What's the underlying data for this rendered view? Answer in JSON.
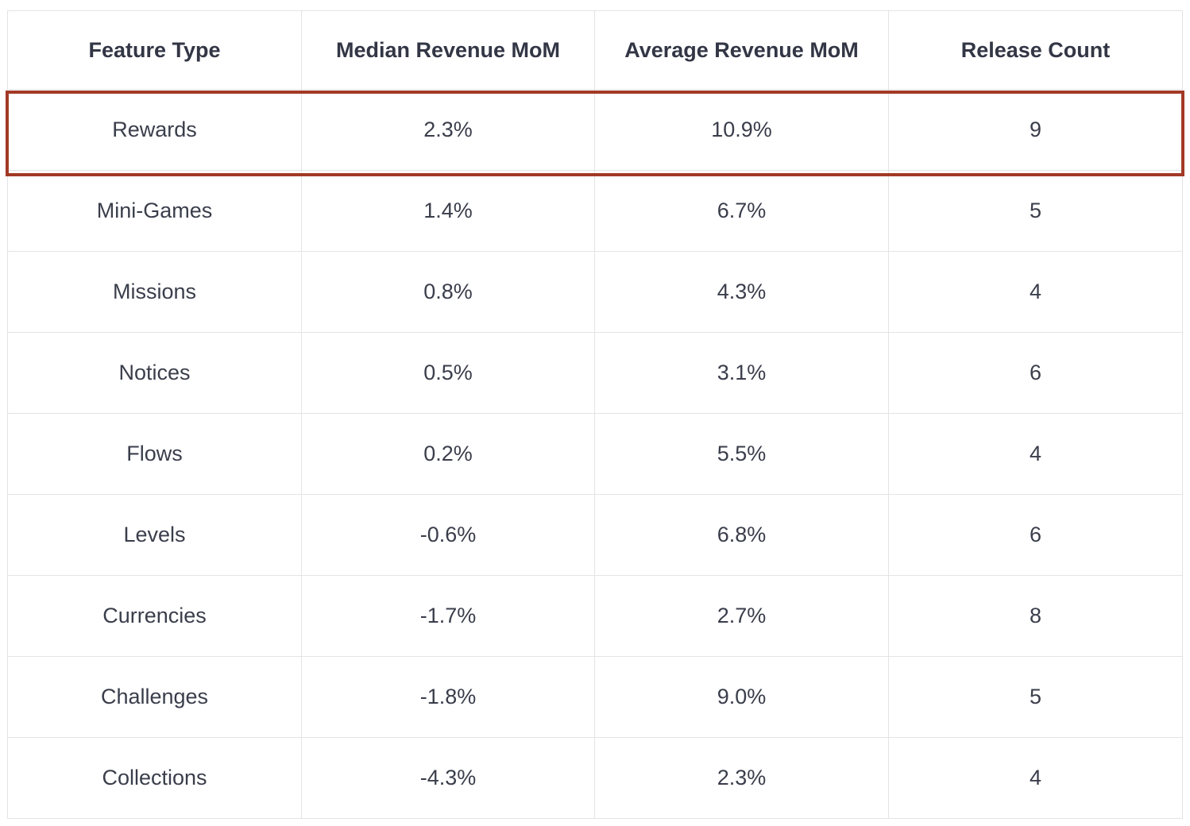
{
  "chart_data": {
    "type": "table",
    "columns": [
      "Feature Type",
      "Median Revenue MoM",
      "Average Revenue MoM",
      "Release Count"
    ],
    "rows": [
      [
        "Rewards",
        "2.3%",
        "10.9%",
        "9"
      ],
      [
        "Mini-Games",
        "1.4%",
        "6.7%",
        "5"
      ],
      [
        "Missions",
        "0.8%",
        "4.3%",
        "4"
      ],
      [
        "Notices",
        "0.5%",
        "3.1%",
        "6"
      ],
      [
        "Flows",
        "0.2%",
        "5.5%",
        "4"
      ],
      [
        "Levels",
        "-0.6%",
        "6.8%",
        "6"
      ],
      [
        "Currencies",
        "-1.7%",
        "2.7%",
        "8"
      ],
      [
        "Challenges",
        "-1.8%",
        "9.0%",
        "5"
      ],
      [
        "Collections",
        "-4.3%",
        "2.3%",
        "4"
      ]
    ],
    "highlighted_row": "Rewards",
    "highlight_color": "#a23a26"
  }
}
